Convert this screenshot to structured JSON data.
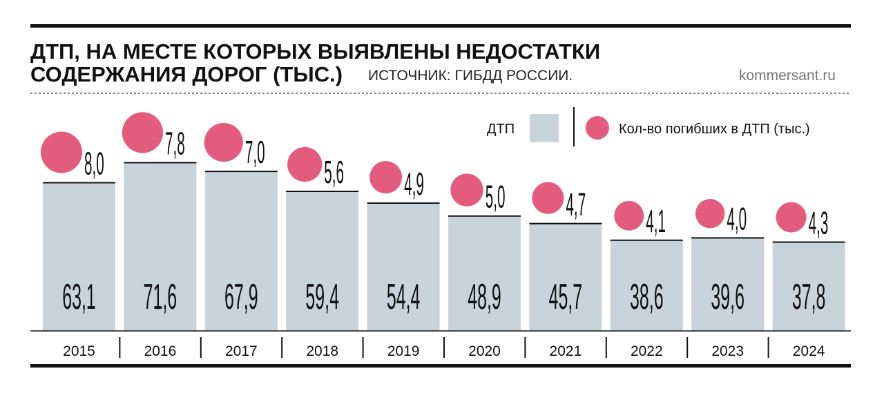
{
  "title_line1": "ДТП, НА МЕСТЕ КОТОРЫХ ВЫЯВЛЕНЫ НЕДОСТАТКИ",
  "title_line2": "СОДЕРЖАНИЯ ДОРОГ (ТЫС.)",
  "source": "ИСТОЧНИК: ГИБДД РОССИИ.",
  "site": "kommersant.ru",
  "colors": {
    "bar": "#c9d3da",
    "circle": "#e35c7e",
    "text": "#111111"
  },
  "chart_data": {
    "type": "bar",
    "title": "ДТП, НА МЕСТЕ КОТОРЫХ ВЫЯВЛЕНЫ НЕДОСТАТКИ СОДЕРЖАНИЯ ДОРОГ (ТЫС.)",
    "categories": [
      "2015",
      "2016",
      "2017",
      "2018",
      "2019",
      "2020",
      "2021",
      "2022",
      "2023",
      "2024"
    ],
    "series": [
      {
        "name": "ДТП",
        "values": [
          63.1,
          71.6,
          67.9,
          59.4,
          54.4,
          48.9,
          45.7,
          38.6,
          39.6,
          37.8
        ],
        "labels": [
          "63,1",
          "71,6",
          "67,9",
          "59,4",
          "54,4",
          "48,9",
          "45,7",
          "38,6",
          "39,6",
          "37,8"
        ]
      },
      {
        "name": "Кол-во погибших в ДТП (тыс.)",
        "values": [
          8.0,
          7.8,
          7.0,
          5.6,
          4.9,
          5.0,
          4.7,
          4.1,
          4.0,
          4.3
        ],
        "labels": [
          "8,0",
          "7,8",
          "7,0",
          "5,6",
          "4,9",
          "5,0",
          "4,7",
          "4,1",
          "4,0",
          "4,3"
        ]
      }
    ],
    "legend": [
      "ДТП",
      "Кол-во погибших в ДТП (тыс.)"
    ],
    "legend_position": "top-right",
    "xlabel": "",
    "ylabel": "",
    "ylim": [
      0,
      80
    ]
  }
}
